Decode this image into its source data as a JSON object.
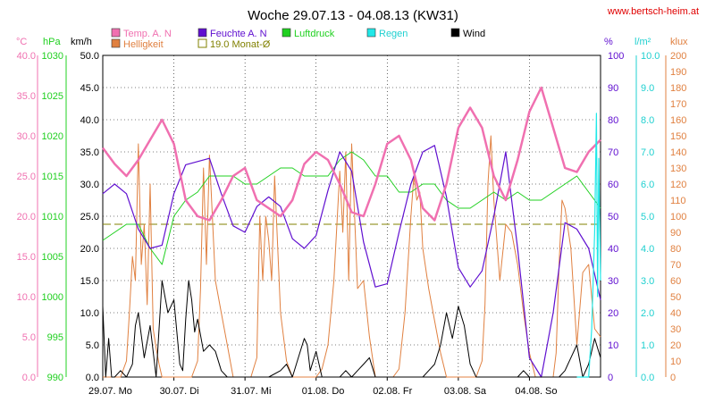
{
  "title": "Woche 29.07.13 - 04.08.13 (KW31)",
  "website": "www.bertsch-heim.at",
  "colors": {
    "temp": "#f070b0",
    "hell": "#e08040",
    "feuchte": "#6010d0",
    "druck": "#20d020",
    "regen": "#20e8e8",
    "wind": "#000000",
    "avg": "#808000",
    "website": "#e00000"
  },
  "legend": [
    {
      "key": "temp",
      "label": "Temp. A. N",
      "style": "box"
    },
    {
      "key": "hell",
      "label": "Helligkeit",
      "style": "box"
    },
    {
      "key": "feuchte",
      "label": "Feuchte A. N",
      "style": "box"
    },
    {
      "key": "avg",
      "label": "19.0 Monat-Ø",
      "style": "hollow"
    },
    {
      "key": "druck",
      "label": "Luftdruck",
      "style": "box"
    },
    {
      "key": "regen",
      "label": "Regen",
      "style": "box"
    },
    {
      "key": "wind",
      "label": "Wind",
      "style": "box"
    }
  ],
  "axis_units": {
    "temp": "°C",
    "druck": "hPa",
    "wind": "km/h",
    "feuchte": "%",
    "regen": "l/m²",
    "hell": "klux"
  },
  "chart_data": {
    "type": "line",
    "title": "Woche 29.07.13 - 04.08.13 (KW31)",
    "x_labels": [
      "29.07. Mo",
      "30.07. Di",
      "31.07. Mi",
      "01.08. Do",
      "02.08. Fr",
      "03.08. Sa",
      "04.08. So"
    ],
    "x_range_hours": [
      0,
      168
    ],
    "grid": true,
    "axes": {
      "wind": {
        "unit": "km/h",
        "range": [
          0,
          50
        ],
        "ticks": [
          "0.0",
          "5.0",
          "10.0",
          "15.0",
          "20.0",
          "25.0",
          "30.0",
          "35.0",
          "40.0",
          "45.0",
          "50.0"
        ]
      },
      "druck": {
        "unit": "hPa",
        "range": [
          990,
          1030
        ],
        "ticks": [
          "990",
          "995",
          "1000",
          "1005",
          "1010",
          "1015",
          "1020",
          "1025",
          "1030"
        ]
      },
      "temp": {
        "unit": "°C",
        "range": [
          0,
          40
        ],
        "ticks": [
          "0.0",
          "5.0",
          "10.0",
          "15.0",
          "20.0",
          "25.0",
          "30.0",
          "35.0",
          "40.0"
        ]
      },
      "feuchte": {
        "unit": "%",
        "range": [
          0,
          100
        ],
        "ticks": [
          "0",
          "10",
          "20",
          "30",
          "40",
          "50",
          "60",
          "70",
          "80",
          "90",
          "100"
        ]
      },
      "regen": {
        "unit": "l/m²",
        "range": [
          0,
          10
        ],
        "ticks": [
          "0.0",
          "1.0",
          "2.0",
          "3.0",
          "4.0",
          "5.0",
          "6.0",
          "7.0",
          "8.0",
          "9.0",
          "10.0"
        ]
      },
      "hell": {
        "unit": "klux",
        "range": [
          0,
          200
        ],
        "ticks": [
          "0",
          "10",
          "20",
          "30",
          "40",
          "50",
          "60",
          "70",
          "80",
          "90",
          "100",
          "110",
          "120",
          "130",
          "140",
          "150",
          "160",
          "170",
          "180",
          "190",
          "200"
        ]
      }
    },
    "series": [
      {
        "name": "Temp. A. N",
        "key": "temp",
        "axis": "temp",
        "x": [
          0,
          4,
          8,
          12,
          16,
          20,
          24,
          28,
          32,
          36,
          40,
          44,
          48,
          52,
          56,
          60,
          64,
          68,
          72,
          76,
          80,
          84,
          88,
          92,
          96,
          100,
          104,
          108,
          112,
          116,
          120,
          124,
          128,
          132,
          136,
          140,
          144,
          148,
          152,
          156,
          160,
          164,
          168
        ],
        "y": [
          28.5,
          26.5,
          25.0,
          27.0,
          29.5,
          32.0,
          29.0,
          22.0,
          20.0,
          19.5,
          22.0,
          25.0,
          26.0,
          22.0,
          21.0,
          20.0,
          22.0,
          26.5,
          28.0,
          27.0,
          24.0,
          20.5,
          20.0,
          24.0,
          29.0,
          30.0,
          27.0,
          21.0,
          19.5,
          24.0,
          31.0,
          33.5,
          31.0,
          25.0,
          22.0,
          27.0,
          33.0,
          36.0,
          31.0,
          26.0,
          25.5,
          28.0,
          29.5
        ]
      },
      {
        "name": "Helligkeit",
        "key": "hell",
        "axis": "hell",
        "x": [
          0,
          2,
          4,
          6,
          8,
          9,
          10,
          11,
          12,
          13,
          14,
          15,
          16,
          17,
          18,
          19,
          20,
          22,
          24,
          26,
          28,
          30,
          32,
          33,
          34,
          35,
          36,
          38,
          40,
          42,
          44,
          46,
          48,
          50,
          52,
          53,
          54,
          55,
          56,
          57,
          58,
          60,
          62,
          64,
          66,
          68,
          70,
          72,
          74,
          76,
          78,
          80,
          81,
          82,
          83,
          84,
          86,
          88,
          90,
          92,
          94,
          96,
          98,
          100,
          102,
          104,
          105,
          106,
          107,
          108,
          110,
          112,
          114,
          116,
          118,
          120,
          122,
          124,
          126,
          128,
          129,
          130,
          131,
          132,
          134,
          136,
          138,
          140,
          142,
          144,
          146,
          148,
          150,
          152,
          153,
          154,
          155,
          156,
          158,
          160,
          162,
          164,
          166,
          168
        ],
        "y": [
          0,
          0,
          0,
          0,
          10,
          40,
          75,
          60,
          145,
          70,
          95,
          45,
          120,
          30,
          18,
          8,
          0,
          0,
          0,
          0,
          0,
          0,
          10,
          55,
          130,
          70,
          138,
          60,
          40,
          20,
          0,
          0,
          0,
          0,
          12,
          100,
          60,
          100,
          85,
          60,
          125,
          40,
          10,
          0,
          0,
          0,
          0,
          0,
          5,
          20,
          60,
          128,
          90,
          140,
          60,
          145,
          55,
          60,
          25,
          0,
          0,
          0,
          0,
          5,
          40,
          100,
          125,
          110,
          115,
          80,
          55,
          35,
          15,
          0,
          0,
          0,
          0,
          0,
          0,
          10,
          45,
          120,
          150,
          110,
          60,
          95,
          90,
          70,
          40,
          15,
          0,
          0,
          0,
          0,
          15,
          70,
          110,
          105,
          80,
          20,
          65,
          70,
          30,
          25
        ]
      },
      {
        "name": "Feuchte A. N",
        "key": "feuchte",
        "axis": "feuchte",
        "x": [
          0,
          4,
          8,
          12,
          16,
          20,
          24,
          28,
          32,
          36,
          40,
          44,
          48,
          52,
          56,
          60,
          64,
          68,
          72,
          76,
          80,
          84,
          88,
          92,
          96,
          100,
          104,
          108,
          112,
          116,
          120,
          124,
          128,
          132,
          136,
          140,
          144,
          148,
          152,
          156,
          160,
          164,
          168
        ],
        "y": [
          57,
          60,
          57,
          46,
          40,
          41,
          57,
          66,
          67,
          68,
          57,
          47,
          45,
          53,
          56,
          53,
          43,
          40,
          44,
          58,
          70,
          64,
          42,
          28,
          29,
          45,
          60,
          70,
          72,
          56,
          34,
          28,
          33,
          50,
          70,
          40,
          6,
          0,
          20,
          48,
          46,
          40,
          24
        ]
      },
      {
        "name": "Luftdruck",
        "key": "druck",
        "axis": "druck",
        "x": [
          0,
          4,
          8,
          12,
          16,
          20,
          24,
          28,
          32,
          36,
          40,
          44,
          48,
          52,
          56,
          60,
          64,
          68,
          72,
          76,
          80,
          84,
          88,
          92,
          96,
          100,
          104,
          108,
          112,
          116,
          120,
          124,
          128,
          132,
          136,
          140,
          144,
          148,
          152,
          156,
          160,
          164,
          168
        ],
        "y": [
          1007,
          1008,
          1009,
          1009,
          1006,
          1004,
          1010,
          1012,
          1013,
          1015,
          1015,
          1015,
          1014,
          1014,
          1015,
          1016,
          1016,
          1015,
          1015,
          1015,
          1017,
          1018,
          1017,
          1015,
          1015,
          1013,
          1013,
          1014,
          1014,
          1012,
          1011,
          1011,
          1012,
          1013,
          1012,
          1013,
          1012,
          1012,
          1013,
          1014,
          1015,
          1013,
          1011
        ]
      },
      {
        "name": "Regen",
        "key": "regen",
        "axis": "regen",
        "x": [
          160,
          164,
          165,
          166,
          166.6,
          167,
          167.4,
          168
        ],
        "y": [
          0,
          0,
          1.5,
          4.5,
          8.2,
          2.5,
          6.8,
          3.0
        ]
      },
      {
        "name": "Wind",
        "key": "wind",
        "axis": "wind",
        "x": [
          0,
          1,
          2,
          3,
          4,
          6,
          8,
          10,
          11,
          12,
          14,
          16,
          18,
          20,
          22,
          24,
          26,
          27,
          28,
          29,
          30,
          31,
          32,
          34,
          36,
          38,
          40,
          42,
          44,
          46,
          48,
          52,
          56,
          60,
          62,
          64,
          66,
          68,
          69,
          70,
          72,
          74,
          76,
          78,
          80,
          82,
          84,
          86,
          88,
          90,
          92,
          94,
          96,
          98,
          100,
          102,
          104,
          106,
          108,
          110,
          112,
          114,
          116,
          118,
          120,
          122,
          124,
          126,
          128,
          130,
          132,
          134,
          136,
          138,
          140,
          142,
          144,
          146,
          148,
          150,
          152,
          154,
          156,
          158,
          160,
          162,
          164,
          166,
          168
        ],
        "y": [
          11,
          0,
          6,
          0,
          0,
          1,
          0,
          2,
          8,
          10,
          3,
          8,
          0,
          15,
          10,
          12,
          2,
          1,
          9,
          15,
          12,
          7,
          9,
          4,
          5,
          4,
          1,
          0,
          0,
          0,
          0,
          0,
          0,
          1,
          2,
          0,
          3,
          6,
          5,
          1,
          4,
          0,
          0,
          0,
          0,
          1,
          0,
          1,
          2,
          3,
          0,
          0,
          0,
          0,
          0,
          0,
          0,
          0,
          0,
          1,
          2,
          5,
          10,
          6,
          11,
          8,
          2,
          0,
          0,
          0,
          0,
          0,
          0,
          0,
          0,
          1,
          0,
          0,
          0,
          0,
          0,
          0,
          1,
          3,
          5,
          0,
          2,
          6,
          3
        ]
      }
    ],
    "reference_lines": [
      {
        "name": "19.0 Monat-Ø",
        "key": "avg",
        "axis": "temp",
        "value": 19.0
      }
    ]
  }
}
